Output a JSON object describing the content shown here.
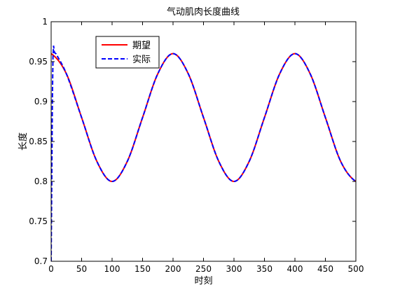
{
  "chart_data": {
    "type": "line",
    "title": "气动肌肉长度曲线",
    "xlabel": "时刻",
    "ylabel": "长度",
    "xlim": [
      0,
      500
    ],
    "ylim": [
      0.7,
      1.0
    ],
    "xticks": [
      0,
      50,
      100,
      150,
      200,
      250,
      300,
      350,
      400,
      450,
      500
    ],
    "xtick_labels": [
      "0",
      "50",
      "100",
      "150",
      "200",
      "250",
      "300",
      "350",
      "400",
      "450",
      "500"
    ],
    "yticks": [
      0.7,
      0.75,
      0.8,
      0.85,
      0.9,
      0.95,
      1.0
    ],
    "ytick_labels": [
      "0.7",
      "0.75",
      "0.8",
      "0.85",
      "0.9",
      "0.95",
      "1"
    ],
    "grid": false,
    "legend_position": "top-left",
    "series": [
      {
        "name": "期望",
        "color": "#ff0000",
        "style": "solid",
        "x": [
          0,
          25,
          50,
          75,
          100,
          125,
          150,
          175,
          200,
          225,
          250,
          275,
          300,
          325,
          350,
          375,
          400,
          425,
          450,
          475,
          500
        ],
        "y": [
          0.96,
          0.9348,
          0.88,
          0.8252,
          0.8,
          0.8252,
          0.88,
          0.9348,
          0.96,
          0.9348,
          0.88,
          0.8252,
          0.8,
          0.8252,
          0.88,
          0.9348,
          0.96,
          0.9348,
          0.88,
          0.8252,
          0.8
        ]
      },
      {
        "name": "实际",
        "color": "#0000ff",
        "style": "dashed",
        "x": [
          0,
          1,
          2,
          3,
          4,
          5,
          6,
          8,
          25,
          50,
          75,
          100,
          125,
          150,
          175,
          200,
          225,
          250,
          275,
          300,
          325,
          350,
          375,
          400,
          425,
          450,
          475,
          500
        ],
        "y": [
          0.7,
          0.8,
          0.9,
          0.955,
          0.97,
          0.963,
          0.961,
          0.9598,
          0.9348,
          0.88,
          0.8252,
          0.8,
          0.8252,
          0.88,
          0.9348,
          0.96,
          0.9348,
          0.88,
          0.8252,
          0.8,
          0.8252,
          0.88,
          0.9348,
          0.96,
          0.9348,
          0.88,
          0.8252,
          0.8
        ]
      }
    ]
  }
}
